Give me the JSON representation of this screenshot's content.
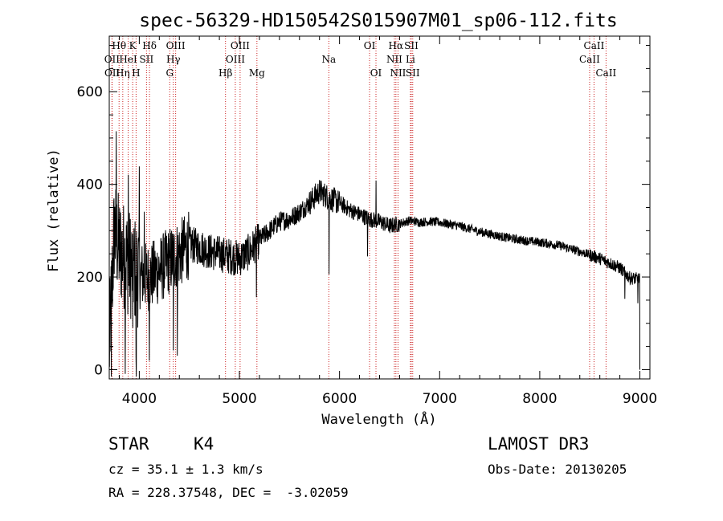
{
  "chart_data": {
    "type": "line",
    "title": "spec-56329-HD150542S015907M01_sp06-112.fits",
    "xlabel": "Wavelength (Å)",
    "ylabel": "Flux (relative)",
    "xlim": [
      3700,
      9100
    ],
    "ylim": [
      -20,
      720
    ],
    "xticks": [
      4000,
      5000,
      6000,
      7000,
      8000,
      9000
    ],
    "yticks": [
      0,
      200,
      400,
      600
    ],
    "continuum": [
      [
        3700,
        40
      ],
      [
        3750,
        300
      ],
      [
        3800,
        260
      ],
      [
        3900,
        230
      ],
      [
        4000,
        205
      ],
      [
        4100,
        200
      ],
      [
        4200,
        215
      ],
      [
        4300,
        235
      ],
      [
        4400,
        250
      ],
      [
        4500,
        270
      ],
      [
        4600,
        265
      ],
      [
        4700,
        255
      ],
      [
        4800,
        250
      ],
      [
        4900,
        245
      ],
      [
        5000,
        240
      ],
      [
        5100,
        255
      ],
      [
        5200,
        280
      ],
      [
        5300,
        300
      ],
      [
        5400,
        320
      ],
      [
        5500,
        325
      ],
      [
        5600,
        340
      ],
      [
        5700,
        360
      ],
      [
        5800,
        385
      ],
      [
        5900,
        370
      ],
      [
        6000,
        360
      ],
      [
        6100,
        345
      ],
      [
        6200,
        335
      ],
      [
        6300,
        325
      ],
      [
        6400,
        320
      ],
      [
        6500,
        310
      ],
      [
        6600,
        315
      ],
      [
        6700,
        322
      ],
      [
        6800,
        318
      ],
      [
        6900,
        320
      ],
      [
        7000,
        318
      ],
      [
        7200,
        310
      ],
      [
        7400,
        298
      ],
      [
        7600,
        288
      ],
      [
        7800,
        280
      ],
      [
        8000,
        275
      ],
      [
        8200,
        268
      ],
      [
        8400,
        255
      ],
      [
        8600,
        240
      ],
      [
        8700,
        230
      ],
      [
        8800,
        220
      ],
      [
        8900,
        198
      ],
      [
        9000,
        195
      ]
    ],
    "features": [
      [
        3720,
        -320
      ],
      [
        3770,
        250
      ],
      [
        3860,
        -200
      ],
      [
        3890,
        200
      ],
      [
        3935,
        -250
      ],
      [
        3968,
        -260
      ],
      [
        4000,
        220
      ],
      [
        4050,
        160
      ],
      [
        4100,
        -120
      ],
      [
        4340,
        -230
      ],
      [
        4380,
        -170
      ],
      [
        5170,
        -90
      ],
      [
        5895,
        -160
      ],
      [
        6280,
        -90
      ],
      [
        6365,
        80
      ],
      [
        8850,
        -60
      ],
      [
        8980,
        -40
      ],
      [
        9000,
        -150
      ]
    ],
    "lines": [
      {
        "label": "Hθ",
        "wavelength": 3798,
        "row": 0
      },
      {
        "label": "K",
        "wavelength": 3934,
        "row": 0
      },
      {
        "label": "Hδ",
        "wavelength": 4102,
        "row": 0
      },
      {
        "label": "OIII",
        "wavelength": 4363,
        "row": 0
      },
      {
        "label": "OIII",
        "wavelength": 5007,
        "row": 0
      },
      {
        "label": "OI",
        "wavelength": 6300,
        "row": 0
      },
      {
        "label": "Hα",
        "wavelength": 6563,
        "row": 0
      },
      {
        "label": "SII",
        "wavelength": 6717,
        "row": 0
      },
      {
        "label": "CaII",
        "wavelength": 8542,
        "row": 0
      },
      {
        "label": "OII",
        "wavelength": 3727,
        "row": 1
      },
      {
        "label": "HeI",
        "wavelength": 3889,
        "row": 1
      },
      {
        "label": "SII",
        "wavelength": 4072,
        "row": 1
      },
      {
        "label": "Hγ",
        "wavelength": 4340,
        "row": 1
      },
      {
        "label": "OIII",
        "wavelength": 4959,
        "row": 1
      },
      {
        "label": "Na",
        "wavelength": 5893,
        "row": 1
      },
      {
        "label": "NII",
        "wavelength": 6548,
        "row": 1
      },
      {
        "label": "Li",
        "wavelength": 6708,
        "row": 1
      },
      {
        "label": "CaII",
        "wavelength": 8498,
        "row": 1
      },
      {
        "label": "OII",
        "wavelength": 3729,
        "row": 2
      },
      {
        "label": "Hη",
        "wavelength": 3835,
        "row": 2
      },
      {
        "label": "H",
        "wavelength": 3968,
        "row": 2
      },
      {
        "label": "G",
        "wavelength": 4304,
        "row": 2
      },
      {
        "label": "Hβ",
        "wavelength": 4861,
        "row": 2
      },
      {
        "label": "Mg",
        "wavelength": 5175,
        "row": 2
      },
      {
        "label": "OI",
        "wavelength": 6364,
        "row": 2
      },
      {
        "label": "NII",
        "wavelength": 6584,
        "row": 2
      },
      {
        "label": "SII",
        "wavelength": 6731,
        "row": 2
      },
      {
        "label": "CaII",
        "wavelength": 8662,
        "row": 2
      }
    ],
    "colors": {
      "spectrum": "#000000",
      "lines": "#cc2222",
      "axes": "#000000"
    }
  },
  "info": {
    "object_class": "STAR",
    "subclass": "K4",
    "survey": "LAMOST DR3",
    "redshift": "cz = 35.1 ± 1.3 km/s",
    "obs_date": "Obs-Date: 20130205",
    "coordinates": "RA = 228.37548, DEC =  -3.02059"
  }
}
